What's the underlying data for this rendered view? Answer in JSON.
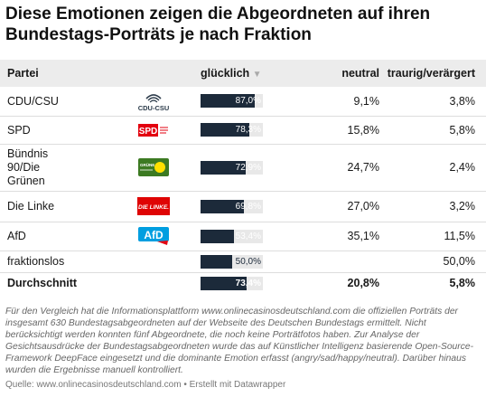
{
  "title": "Diese Emotionen zeigen die Abgeordneten auf ihren Bundestags-Porträts je nach Fraktion",
  "colors": {
    "bar": "#1c2a3a",
    "bar_track": "#e8e8e8",
    "header_bg": "#ececec",
    "cdu": "#2d3c4b",
    "spd": "#e3000f",
    "gruene": "#3c7a22",
    "linke": "#df0404",
    "afd": "#009ee0"
  },
  "chart_data": {
    "type": "table",
    "columns": [
      "Partei",
      "glücklich",
      "neutral",
      "traurig/verärgert"
    ],
    "sort_indicator": "▼",
    "rows": [
      {
        "party": "CDU/CSU",
        "logo": "CDU-CSU",
        "happy": 87.0,
        "happy_label": "87,0%",
        "neutral": "9,1%",
        "sad": "3,8%"
      },
      {
        "party": "SPD",
        "logo": "SPD",
        "happy": 78.3,
        "happy_label": "78,3%",
        "neutral": "15,8%",
        "sad": "5,8%"
      },
      {
        "party": "Bündnis 90/Die Grünen",
        "logo": "GRÜNE",
        "happy": 72.9,
        "happy_label": "72,9%",
        "neutral": "24,7%",
        "sad": "2,4%"
      },
      {
        "party": "Die Linke",
        "logo": "DIE LINKE.",
        "happy": 69.8,
        "happy_label": "69,8%",
        "neutral": "27,0%",
        "sad": "3,2%"
      },
      {
        "party": "AfD",
        "logo": "AfD",
        "happy": 53.4,
        "happy_label": "53,4%",
        "neutral": "35,1%",
        "sad": "11,5%"
      },
      {
        "party": "fraktionslos",
        "logo": "",
        "happy": 50.0,
        "happy_label": "50,0%",
        "neutral": "",
        "sad": "50,0%"
      }
    ],
    "average": {
      "party": "Durchschnitt",
      "happy": 73.4,
      "happy_label": "73,4%",
      "neutral": "20,8%",
      "sad": "5,8%"
    }
  },
  "footnote": "Für den Vergleich hat die Informationsplattform www.onlinecasinosdeutschland.com die offiziellen Porträts der insgesamt 630 Bundestagsabgeordneten auf der Webseite des Deutschen Bundestags ermittelt. Nicht berücksichtigt werden konnten fünf Abgeordnete, die noch keine Porträtfotos haben. Zur Analyse der Gesichtsausdrücke der Bundestagsabgeordneten wurde das auf Künstlicher Intelligenz basierende Open-Source-Framework DeepFace eingesetzt und die dominante Emotion erfasst (angry/sad/happy/neutral). Darüber hinaus wurden die Ergebnisse manuell kontrolliert.",
  "source": "Quelle: www.onlinecasinosdeutschland.com • Erstellt mit Datawrapper"
}
